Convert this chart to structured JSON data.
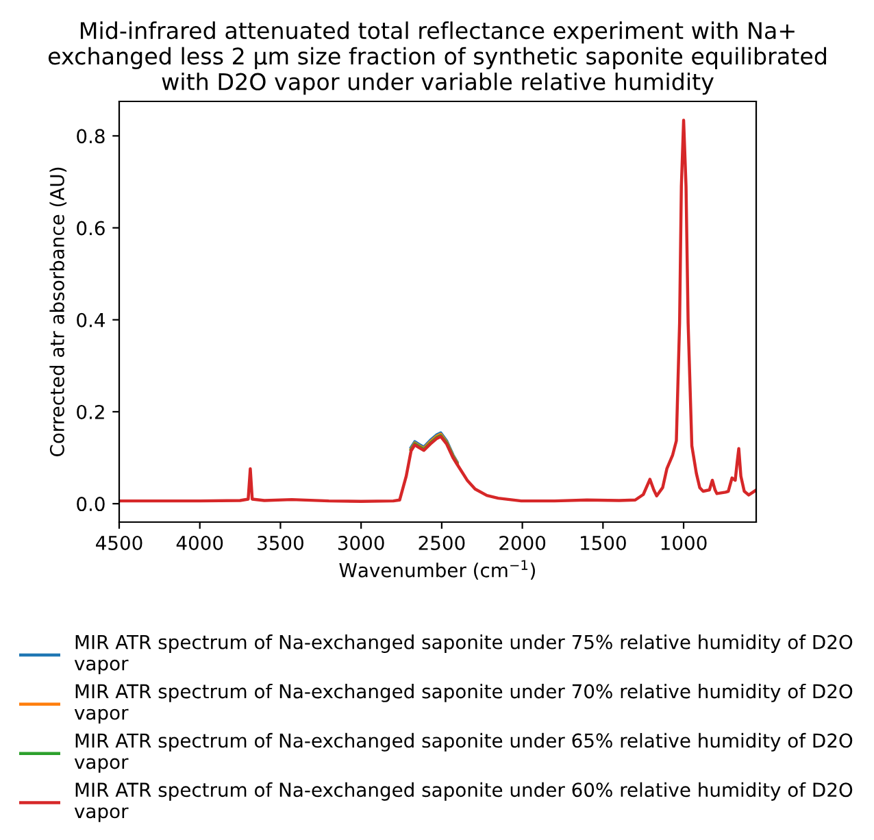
{
  "chart_data": {
    "type": "line",
    "title": "Mid-infrared attenuated total reflectance experiment with Na+\nexchanged less 2 µm size fraction of synthetic saponite equilibrated\nwith D2O vapor under variable relative humidity",
    "xlabel": "Wavenumber (cm$^{−1}$)",
    "ylabel": "Corrected atr absorbance (AU)",
    "x": [
      4500,
      4000,
      3750,
      3700,
      3687,
      3675,
      3600,
      3430,
      3200,
      3000,
      2800,
      2761,
      2720,
      2690,
      2667,
      2640,
      2611,
      2570,
      2530,
      2506,
      2470,
      2430,
      2405,
      2378,
      2340,
      2293,
      2220,
      2150,
      2007,
      1800,
      1600,
      1400,
      1300,
      1250,
      1209,
      1185,
      1167,
      1130,
      1104,
      1068,
      1045,
      1025,
      1014,
      1000,
      985,
      972,
      949,
      921,
      900,
      879,
      840,
      822,
      805,
      794,
      740,
      723,
      700,
      680,
      668,
      658,
      645,
      624,
      596,
      553
    ],
    "series": [
      {
        "name": "MIR ATR spectrum of Na-exchanged saponite under 75% relative humidity of D2O\nvapor",
        "color": "#1f77b4",
        "values": [
          null,
          null,
          null,
          null,
          null,
          null,
          null,
          null,
          null,
          null,
          null,
          null,
          null,
          0.122,
          0.135,
          0.129,
          0.123,
          0.138,
          0.15,
          0.154,
          0.137,
          0.106,
          0.091,
          null,
          null,
          null,
          null,
          null,
          null,
          null,
          null,
          null,
          null,
          null,
          null,
          null,
          null,
          null,
          null,
          null,
          null,
          null,
          null,
          null,
          null,
          null,
          null,
          null,
          null,
          null,
          null,
          null,
          null,
          null,
          null,
          null,
          null,
          null,
          null,
          null,
          null,
          null,
          null,
          null
        ]
      },
      {
        "name": "MIR ATR spectrum of Na-exchanged saponite under 70% relative humidity of D2O\nvapor",
        "color": "#ff7f0e",
        "values": [
          null,
          null,
          null,
          null,
          null,
          null,
          null,
          null,
          null,
          null,
          null,
          null,
          null,
          0.119,
          0.132,
          0.126,
          0.12,
          0.135,
          0.147,
          0.151,
          0.134,
          0.104,
          0.089,
          null,
          null,
          null,
          null,
          null,
          null,
          null,
          null,
          null,
          null,
          null,
          null,
          null,
          null,
          null,
          null,
          null,
          null,
          null,
          null,
          null,
          null,
          null,
          null,
          null,
          null,
          null,
          null,
          null,
          null,
          null,
          null,
          null,
          null,
          null,
          null,
          null,
          null,
          null,
          null,
          null
        ]
      },
      {
        "name": "MIR ATR spectrum of Na-exchanged saponite under 65% relative humidity of D2O\nvapor",
        "color": "#2ca02c",
        "values": [
          null,
          null,
          null,
          null,
          null,
          null,
          null,
          null,
          null,
          null,
          null,
          null,
          null,
          0.117,
          0.13,
          0.124,
          0.118,
          0.132,
          0.144,
          0.148,
          0.132,
          0.102,
          0.087,
          null,
          null,
          null,
          null,
          null,
          null,
          null,
          null,
          null,
          null,
          null,
          null,
          null,
          null,
          null,
          null,
          null,
          null,
          null,
          null,
          null,
          null,
          null,
          null,
          null,
          null,
          null,
          null,
          null,
          null,
          null,
          null,
          null,
          null,
          null,
          null,
          null,
          null,
          null,
          null,
          null
        ]
      },
      {
        "name": "MIR ATR spectrum of Na-exchanged saponite under 60% relative humidity of D2O\nvapor",
        "color": "#d62728",
        "values": [
          0.006,
          0.006,
          0.007,
          0.01,
          0.076,
          0.01,
          0.007,
          0.009,
          0.006,
          0.005,
          0.006,
          0.008,
          0.06,
          0.115,
          0.128,
          0.122,
          0.116,
          0.13,
          0.142,
          0.146,
          0.13,
          0.1,
          0.086,
          0.071,
          0.05,
          0.032,
          0.018,
          0.012,
          0.006,
          0.006,
          0.008,
          0.007,
          0.008,
          0.02,
          0.053,
          0.03,
          0.017,
          0.035,
          0.076,
          0.106,
          0.137,
          0.393,
          0.69,
          0.834,
          0.69,
          0.393,
          0.126,
          0.066,
          0.035,
          0.027,
          0.03,
          0.051,
          0.03,
          0.022,
          0.025,
          0.027,
          0.056,
          0.051,
          0.09,
          0.12,
          0.06,
          0.027,
          0.019,
          0.029
        ]
      }
    ],
    "xlim": [
      4500,
      550
    ],
    "xticks": [
      4500,
      4000,
      3500,
      3000,
      2500,
      2000,
      1500,
      1000
    ],
    "ylim": [
      -0.04,
      0.875
    ],
    "yticks": [
      {
        "value": 0.0,
        "label": "0.0"
      },
      0.2,
      0.4,
      0.6,
      0.8
    ],
    "grid": false,
    "legend": "bottom"
  }
}
